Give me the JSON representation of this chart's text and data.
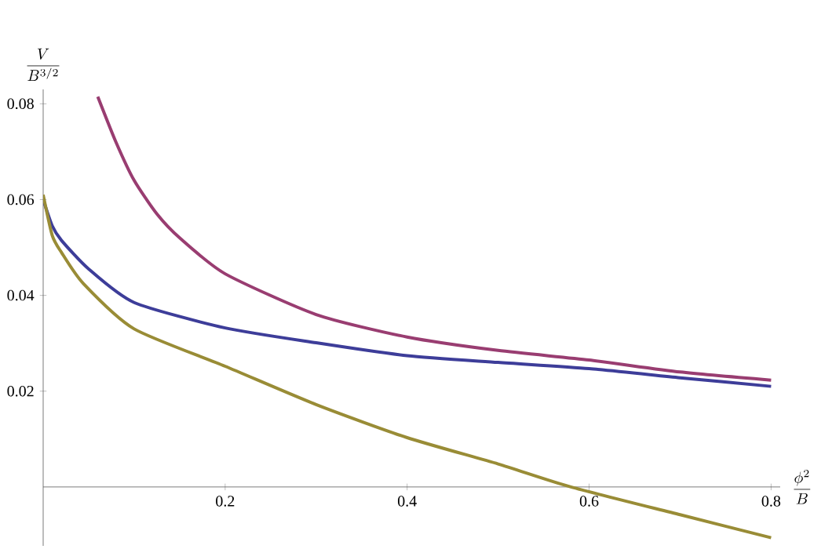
{
  "chart_data": {
    "type": "line",
    "xlabel": "\\frac{\\phi^2}{B}",
    "ylabel": "\\frac{V}{B^{3/2}}",
    "xlim": [
      0,
      0.81
    ],
    "ylim": [
      -0.0123,
      0.083
    ],
    "xticks": [
      0.2,
      0.4,
      0.6,
      0.8
    ],
    "yticks": [
      0.02,
      0.04,
      0.06,
      0.08
    ],
    "series": [
      {
        "color": "#3d3d99",
        "x": [
          0,
          0.01,
          0.02,
          0.05,
          0.1,
          0.2,
          0.3,
          0.4,
          0.5,
          0.6,
          0.7,
          0.8
        ],
        "values": [
          0.06,
          0.0545,
          0.0515,
          0.0455,
          0.0385,
          0.0332,
          0.0301,
          0.0274,
          0.026,
          0.0247,
          0.0228,
          0.021
        ]
      },
      {
        "color": "#993d71",
        "x": [
          0.06,
          0.08,
          0.1,
          0.125,
          0.15,
          0.2,
          0.3,
          0.4,
          0.5,
          0.6,
          0.7,
          0.8
        ],
        "values": [
          0.0815,
          0.072,
          0.064,
          0.057,
          0.052,
          0.0445,
          0.036,
          0.0313,
          0.0285,
          0.0265,
          0.024,
          0.0223
        ]
      },
      {
        "color": "#998c36",
        "x": [
          0,
          0.01,
          0.02,
          0.044,
          0.1,
          0.2,
          0.3,
          0.4,
          0.5,
          0.58,
          0.7,
          0.8
        ],
        "values": [
          0.061,
          0.0525,
          0.049,
          0.0425,
          0.033,
          0.0252,
          0.0172,
          0.0103,
          0.0048,
          0.0,
          -0.0058,
          -0.0106
        ]
      }
    ]
  }
}
